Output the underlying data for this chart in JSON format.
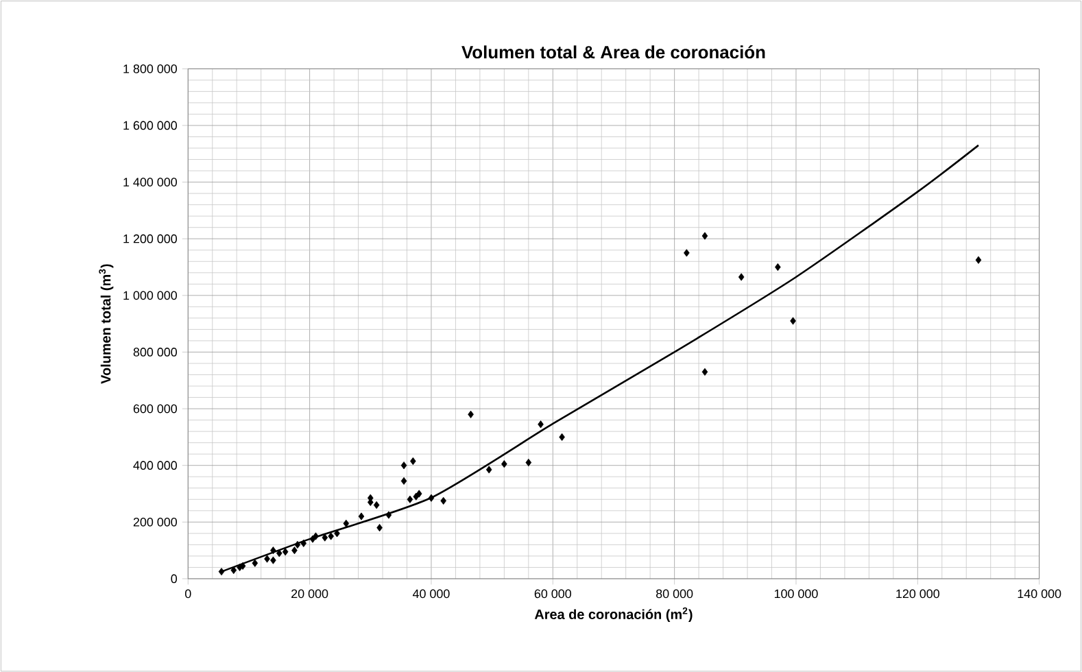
{
  "chart_data": {
    "type": "scatter",
    "title": "Volumen total & Area de coronación",
    "xlabel": "Area de coronación (m$^{2}$)",
    "ylabel": "Volumen total (m$^{3}$)",
    "xlim": [
      0,
      140000
    ],
    "ylim": [
      0,
      1800000
    ],
    "xticks": [
      {
        "value": 0,
        "label": "0"
      },
      {
        "value": 20000,
        "label": "20 000"
      },
      {
        "value": 40000,
        "label": "40 000"
      },
      {
        "value": 60000,
        "label": "60 000"
      },
      {
        "value": 80000,
        "label": "80 000"
      },
      {
        "value": 100000,
        "label": "100 000"
      },
      {
        "value": 120000,
        "label": "120 000"
      },
      {
        "value": 140000,
        "label": "140 000"
      }
    ],
    "yticks": [
      {
        "value": 0,
        "label": "0"
      },
      {
        "value": 200000,
        "label": "200 000"
      },
      {
        "value": 400000,
        "label": "400 000"
      },
      {
        "value": 600000,
        "label": "600 000"
      },
      {
        "value": 800000,
        "label": "800 000"
      },
      {
        "value": 1000000,
        "label": "1 000 000"
      },
      {
        "value": 1200000,
        "label": "1 200 000"
      },
      {
        "value": 1400000,
        "label": "1 400 000"
      },
      {
        "value": 1600000,
        "label": "1 600 000"
      },
      {
        "value": 1800000,
        "label": "1 800 000"
      }
    ],
    "grid": true,
    "marker": "diamond",
    "series": [
      {
        "color": "#000000",
        "x": [
          5500,
          7500,
          8500,
          9000,
          11000,
          13000,
          14000,
          14000,
          15000,
          16000,
          17500,
          18000,
          19000,
          20500,
          21000,
          22500,
          23500,
          24500,
          26000,
          28500,
          30000,
          30000,
          31000,
          31500,
          33000,
          35500,
          35500,
          36500,
          37000,
          37500,
          38000,
          40000,
          42000,
          46500,
          49500,
          52000,
          56000,
          58000,
          61500,
          82000,
          85000,
          85000,
          91000,
          97000,
          99500,
          130000
        ],
        "values": [
          25000,
          30000,
          40000,
          45000,
          55000,
          70000,
          65000,
          100000,
          90000,
          95000,
          100000,
          120000,
          125000,
          140000,
          150000,
          145000,
          150000,
          160000,
          195000,
          220000,
          285000,
          270000,
          260000,
          180000,
          225000,
          400000,
          345000,
          280000,
          415000,
          290000,
          300000,
          285000,
          275000,
          580000,
          385000,
          405000,
          410000,
          545000,
          500000,
          1150000,
          1210000,
          730000,
          1065000,
          1100000,
          910000,
          1125000
        ]
      },
      {
        "type": "line",
        "color": "#000000",
        "marker": "none",
        "x": [
          5500,
          20000,
          40000,
          60000,
          80000,
          100000,
          120000,
          130000
        ],
        "values": [
          25000,
          140000,
          286000,
          547000,
          800000,
          1065000,
          1366000,
          1530000
        ]
      }
    ]
  }
}
